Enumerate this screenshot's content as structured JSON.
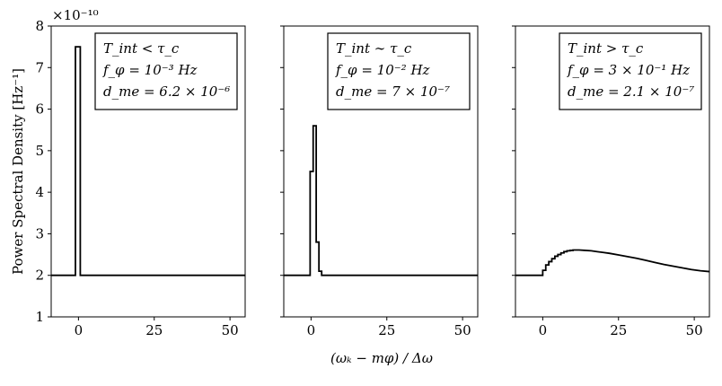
{
  "chart_data": {
    "type": "line",
    "ylabel": "Power Spectral Density [Hz⁻¹]",
    "xlabel": "(ωₖ − mφ) / Δω",
    "xlim": [
      -9,
      55
    ],
    "ylim": [
      1,
      8
    ],
    "x_ticks": [
      0,
      25,
      50
    ],
    "y_ticks": [
      1,
      2,
      3,
      4,
      5,
      6,
      7,
      8
    ],
    "y_scale_label": "×10⁻¹⁰",
    "panels": [
      {
        "annotation": [
          "T_int < τ_c",
          "f_φ = 10⁻³ Hz",
          "d_me = 6.2 × 10⁻⁶"
        ],
        "legend_position": "top-right",
        "steps": [
          [
            -9,
            2.0
          ],
          [
            -1,
            2.0
          ],
          [
            -1,
            7.5
          ],
          [
            0.6,
            7.5
          ],
          [
            0.6,
            2.0
          ],
          [
            55,
            2.0
          ]
        ]
      },
      {
        "annotation": [
          "T_int ∼ τ_c",
          "f_φ = 10⁻² Hz",
          "d_me = 7 × 10⁻⁷"
        ],
        "legend_position": "top-right",
        "steps": [
          [
            -9,
            2.0
          ],
          [
            -0.3,
            2.0
          ],
          [
            -0.3,
            4.5
          ],
          [
            0.7,
            4.5
          ],
          [
            0.7,
            5.6
          ],
          [
            1.7,
            5.6
          ],
          [
            1.7,
            2.8
          ],
          [
            2.6,
            2.8
          ],
          [
            2.6,
            2.1
          ],
          [
            3.5,
            2.1
          ],
          [
            3.5,
            2.0
          ],
          [
            55,
            2.0
          ]
        ]
      },
      {
        "annotation": [
          "T_int > τ_c",
          "f_φ = 3 × 10⁻¹ Hz",
          "d_me = 2.1 × 10⁻⁷"
        ],
        "legend_position": "top-right",
        "steps": [
          [
            -9,
            2.0
          ],
          [
            0,
            2.0
          ],
          [
            0,
            2.12
          ],
          [
            1,
            2.12
          ],
          [
            1,
            2.25
          ],
          [
            2,
            2.25
          ],
          [
            2,
            2.33
          ],
          [
            3,
            2.33
          ],
          [
            3,
            2.4
          ],
          [
            4,
            2.4
          ],
          [
            4,
            2.46
          ],
          [
            5,
            2.46
          ],
          [
            5,
            2.5
          ],
          [
            6,
            2.5
          ],
          [
            6,
            2.54
          ],
          [
            7,
            2.54
          ],
          [
            7,
            2.57
          ],
          [
            8,
            2.57
          ],
          [
            8,
            2.59
          ],
          [
            9,
            2.59
          ],
          [
            9,
            2.6
          ],
          [
            10,
            2.6
          ],
          [
            10,
            2.61
          ],
          [
            12,
            2.61
          ],
          [
            14,
            2.6
          ],
          [
            16,
            2.59
          ],
          [
            18,
            2.57
          ],
          [
            20,
            2.55
          ],
          [
            22,
            2.53
          ],
          [
            25,
            2.49
          ],
          [
            28,
            2.45
          ],
          [
            31,
            2.41
          ],
          [
            34,
            2.36
          ],
          [
            37,
            2.31
          ],
          [
            40,
            2.26
          ],
          [
            43,
            2.22
          ],
          [
            46,
            2.18
          ],
          [
            49,
            2.14
          ],
          [
            52,
            2.11
          ],
          [
            55,
            2.09
          ]
        ]
      }
    ]
  }
}
